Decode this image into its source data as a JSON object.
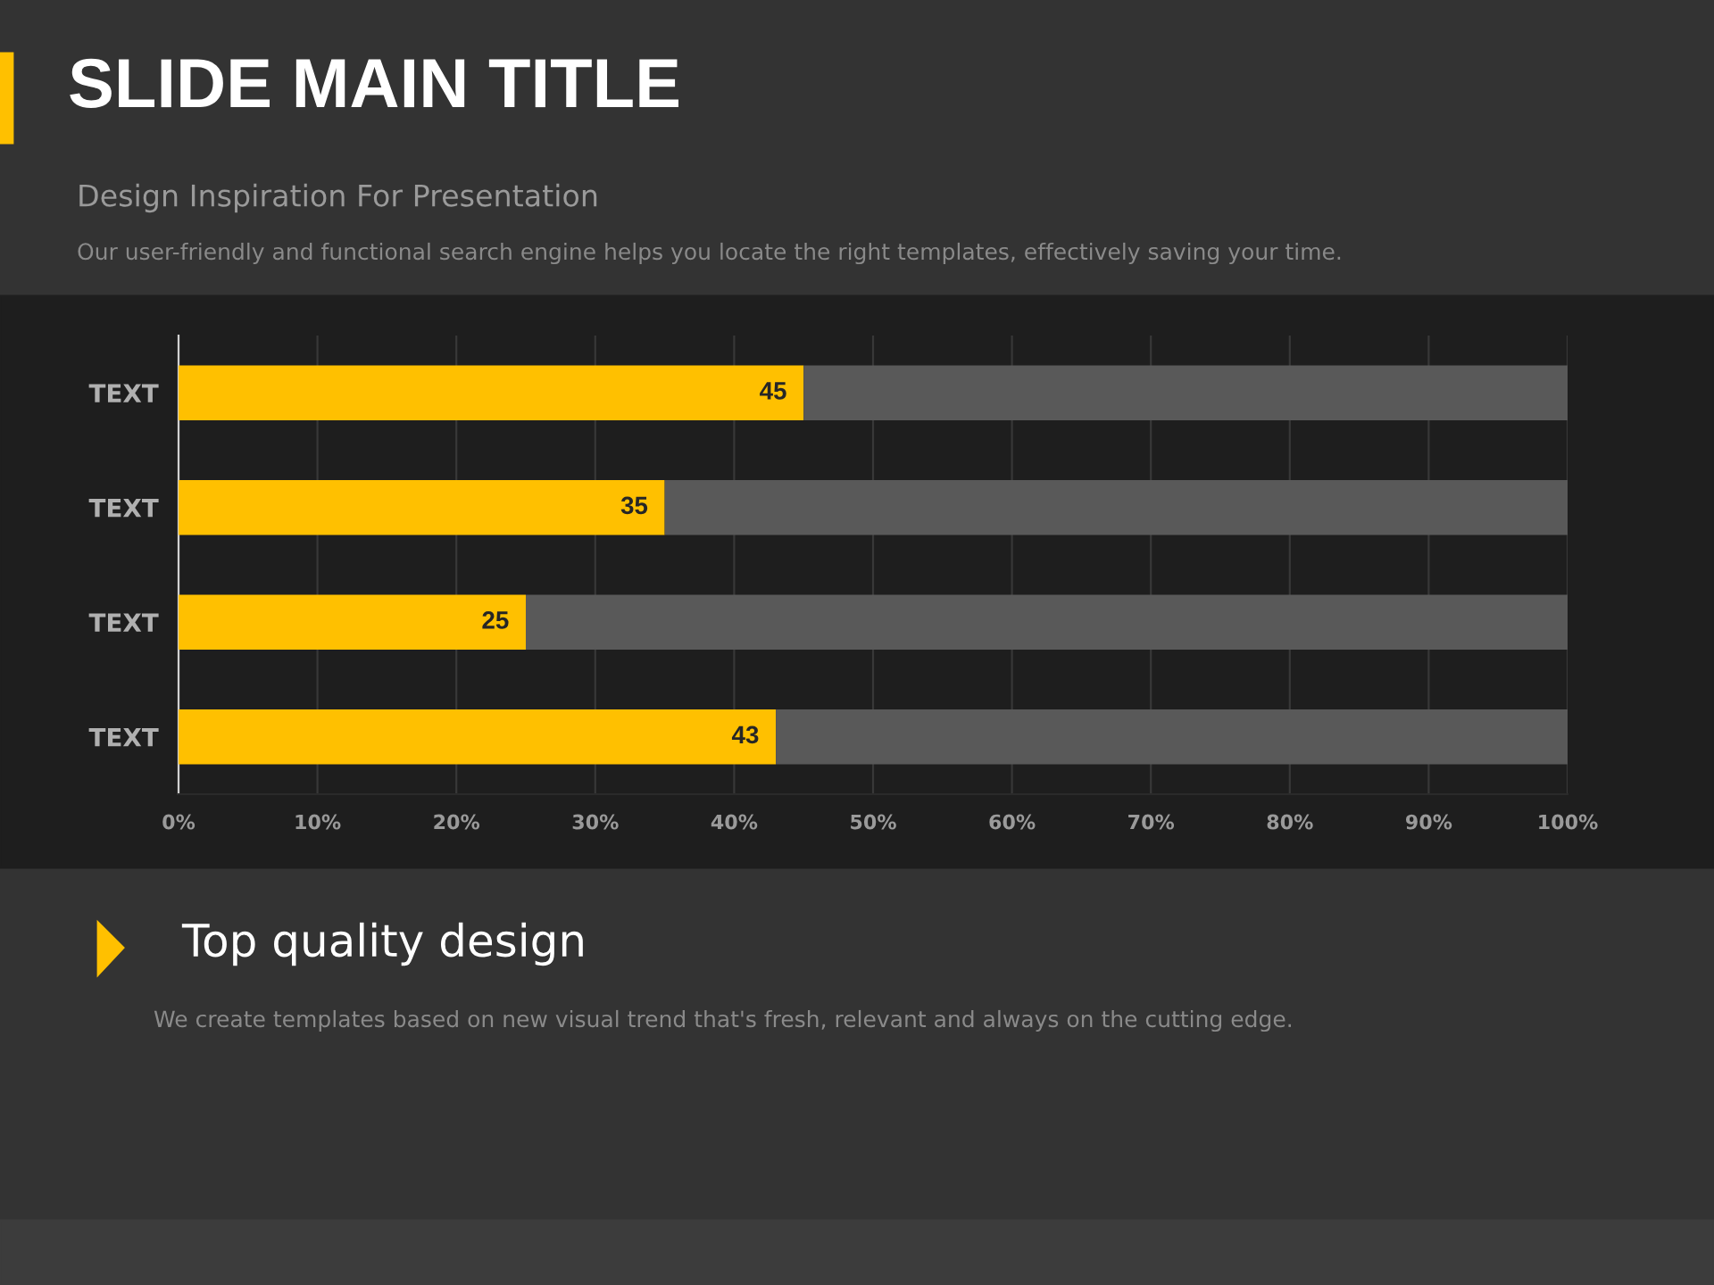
{
  "chart_data": {
    "type": "bar",
    "orientation": "horizontal",
    "stacked": true,
    "title": "SLIDE MAIN TITLE",
    "subtitle": "Design Inspiration For Presentation",
    "annotations": [
      "Our user-friendly and functional search engine helps you locate the right templates, effectively saving your time.",
      "Top quality design",
      "We create templates based on new visual trend that's fresh, relevant and always on the cutting edge."
    ],
    "categories": [
      "TEXT",
      "TEXT",
      "TEXT",
      "TEXT"
    ],
    "series": [
      {
        "color": "#ffc000",
        "values": [
          45,
          35,
          25,
          43
        ],
        "value_labels": [
          "45",
          "35",
          "25",
          "43"
        ]
      },
      {
        "color": "#595959",
        "values": [
          55,
          65,
          75,
          57
        ]
      }
    ],
    "xlim": [
      0,
      100
    ],
    "xticks": [
      {
        "value": 0,
        "label": "0%"
      },
      {
        "value": 10,
        "label": "10%"
      },
      {
        "value": 20,
        "label": "20%"
      },
      {
        "value": 30,
        "label": "30%"
      },
      {
        "value": 40,
        "label": "40%"
      },
      {
        "value": 50,
        "label": "50%"
      },
      {
        "value": 60,
        "label": "60%"
      },
      {
        "value": 70,
        "label": "70%"
      },
      {
        "value": 80,
        "label": "80%"
      },
      {
        "value": 90,
        "label": "90%"
      },
      {
        "value": 100,
        "label": "100%"
      }
    ],
    "grid": "x"
  }
}
